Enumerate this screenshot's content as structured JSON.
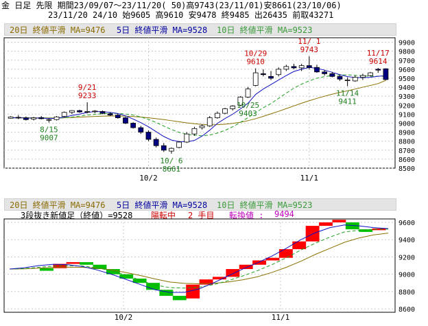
{
  "header": {
    "line1": "金 日足 先限 期間23/09/07～23/11/20( 50)高9743(23/11/01)安8661(23/10/06)",
    "line2": "23/11/20 24/10 始9605 高9610 安9478 終9485 出26435 前取43271"
  },
  "legend": {
    "ma20": "20日 終値平滑 MA=9476",
    "ma5": "5日 終値平滑 MA=9528",
    "ma10": "10日 終値平滑 MA=9523"
  },
  "lower_info": {
    "label": "3段抜き新値足（終値）=9528",
    "state": "陽転中",
    "step": "2 手目",
    "reversal_label": "転換値 :",
    "reversal_value": "9494"
  },
  "colors": {
    "up_candle": "#ffffff",
    "down_candle": "#000080",
    "ma5": "#1010c0",
    "ma10": "#20a020",
    "ma20": "#8a7000",
    "annotation_high": "#cc0000",
    "annotation_low": "#208020",
    "newprice_up": "#ff0000",
    "newprice_down": "#00c000"
  },
  "chart_data": [
    {
      "type": "candlestick",
      "title": "金 日足 先限",
      "y_ticks": [
        "9900",
        "9800",
        "9700",
        "9600",
        "9500",
        "9400",
        "9300",
        "9200",
        "9100",
        "9000",
        "8900",
        "8800",
        "8700",
        "8600",
        "8500"
      ],
      "ylim": [
        8500,
        9950
      ],
      "x_ticks": [
        "10/2",
        "11/1"
      ],
      "candles": [
        [
          9055,
          9078,
          9050,
          9070
        ],
        [
          9065,
          9090,
          9045,
          9060
        ],
        [
          9060,
          9075,
          9030,
          9040
        ],
        [
          9045,
          9070,
          9030,
          9060
        ],
        [
          9062,
          9080,
          9042,
          9050
        ],
        [
          9035,
          9050,
          9007,
          9040
        ],
        [
          9040,
          9080,
          9030,
          9070
        ],
        [
          9075,
          9130,
          9070,
          9120
        ],
        [
          9120,
          9145,
          9100,
          9140
        ],
        [
          9140,
          9150,
          9115,
          9125
        ],
        [
          9125,
          9233,
          9110,
          9130
        ],
        [
          9130,
          9145,
          9110,
          9135
        ],
        [
          9130,
          9140,
          9100,
          9110
        ],
        [
          9105,
          9120,
          9080,
          9090
        ],
        [
          9090,
          9105,
          9050,
          9060
        ],
        [
          9060,
          9070,
          8990,
          9000
        ],
        [
          9000,
          9010,
          8940,
          8950
        ],
        [
          8950,
          8970,
          8880,
          8900
        ],
        [
          8900,
          8920,
          8800,
          8820
        ],
        [
          8820,
          8840,
          8730,
          8750
        ],
        [
          8750,
          8780,
          8680,
          8700
        ],
        [
          8690,
          8730,
          8661,
          8720
        ],
        [
          8730,
          8800,
          8720,
          8790
        ],
        [
          8790,
          8900,
          8780,
          8880
        ],
        [
          8880,
          8960,
          8860,
          8940
        ],
        [
          8950,
          8990,
          8930,
          8970
        ],
        [
          8970,
          9080,
          8960,
          9060
        ],
        [
          9060,
          9130,
          9050,
          9110
        ],
        [
          9110,
          9170,
          9100,
          9160
        ],
        [
          9160,
          9200,
          9140,
          9190
        ],
        [
          9200,
          9300,
          9190,
          9290
        ],
        [
          9290,
          9403,
          9280,
          9380
        ],
        [
          9420,
          9610,
          9410,
          9560
        ],
        [
          9550,
          9600,
          9520,
          9540
        ],
        [
          9520,
          9580,
          9480,
          9500
        ],
        [
          9540,
          9620,
          9520,
          9600
        ],
        [
          9600,
          9650,
          9580,
          9630
        ],
        [
          9630,
          9660,
          9600,
          9615
        ],
        [
          9615,
          9660,
          9580,
          9640
        ],
        [
          9640,
          9743,
          9600,
          9620
        ],
        [
          9620,
          9650,
          9560,
          9570
        ],
        [
          9570,
          9590,
          9530,
          9550
        ],
        [
          9550,
          9570,
          9510,
          9520
        ],
        [
          9520,
          9540,
          9470,
          9490
        ],
        [
          9480,
          9510,
          9411,
          9480
        ],
        [
          9470,
          9530,
          9460,
          9510
        ],
        [
          9510,
          9550,
          9480,
          9530
        ],
        [
          9530,
          9570,
          9520,
          9560
        ],
        [
          9600,
          9614,
          9560,
          9590
        ],
        [
          9605,
          9610,
          9478,
          9485
        ]
      ],
      "ma5": [
        9060,
        9061,
        9058,
        9057,
        9056,
        9052,
        9054,
        9068,
        9086,
        9101,
        9119,
        9130,
        9128,
        9120,
        9108,
        9082,
        9046,
        9006,
        8960,
        8906,
        8852,
        8812,
        8796,
        8794,
        8808,
        8856,
        8922,
        8998,
        9052,
        9100,
        9158,
        9222,
        9320,
        9380,
        9430,
        9480,
        9530,
        9575,
        9600,
        9620,
        9610,
        9590,
        9566,
        9540,
        9518,
        9508,
        9506,
        9510,
        9522,
        9528
      ],
      "ma10": [
        9060,
        9060,
        9058,
        9057,
        9056,
        9055,
        9056,
        9060,
        9068,
        9080,
        9090,
        9098,
        9104,
        9108,
        9108,
        9102,
        9090,
        9070,
        9042,
        9008,
        8968,
        8930,
        8898,
        8878,
        8866,
        8860,
        8868,
        8890,
        8920,
        8960,
        9008,
        9062,
        9118,
        9172,
        9218,
        9276,
        9334,
        9390,
        9434,
        9470,
        9500,
        9518,
        9530,
        9536,
        9538,
        9532,
        9528,
        9522,
        9522,
        9523
      ],
      "ma20": [
        9060,
        9060,
        9059,
        9059,
        9059,
        9058,
        9058,
        9060,
        9063,
        9067,
        9071,
        9075,
        9078,
        9080,
        9080,
        9078,
        9074,
        9068,
        9060,
        9050,
        9040,
        9028,
        9016,
        9004,
        8994,
        8986,
        8982,
        8984,
        8988,
        8998,
        9010,
        9028,
        9050,
        9076,
        9104,
        9132,
        9162,
        9192,
        9222,
        9250,
        9276,
        9300,
        9322,
        9342,
        9360,
        9380,
        9400,
        9420,
        9440,
        9476
      ],
      "annotations": [
        {
          "text": "9/21",
          "value": "9233"
        },
        {
          "text": "8/15",
          "value": "9007"
        },
        {
          "text": "10/ 6",
          "value": "8661"
        },
        {
          "text": "10/29",
          "value": "9610"
        },
        {
          "text": "10/25",
          "value": "9403"
        },
        {
          "text": "11/ 1",
          "value": "9743"
        },
        {
          "text": "11/14",
          "value": "9411"
        },
        {
          "text": "11/17",
          "value": "9614"
        }
      ]
    },
    {
      "type": "newprice",
      "title": "3段抜き新値足（終値）",
      "y_ticks": [
        "9600",
        "9400",
        "9200",
        "9000",
        "8800",
        "8600"
      ],
      "ylim": [
        8560,
        9640
      ],
      "x_ticks": [
        "10/2",
        "11/1"
      ],
      "bricks": [
        {
          "c": "g",
          "lo": 9040,
          "hi": 9070
        },
        {
          "c": "r",
          "lo": 9070,
          "hi": 9120
        },
        {
          "c": "r",
          "lo": 9120,
          "hi": 9140
        },
        {
          "c": "g",
          "lo": 9110,
          "hi": 9140
        },
        {
          "c": "g",
          "lo": 9060,
          "hi": 9110
        },
        {
          "c": "g",
          "lo": 9000,
          "hi": 9060
        },
        {
          "c": "g",
          "lo": 8950,
          "hi": 9000
        },
        {
          "c": "g",
          "lo": 8900,
          "hi": 8950
        },
        {
          "c": "g",
          "lo": 8820,
          "hi": 8900
        },
        {
          "c": "g",
          "lo": 8750,
          "hi": 8820
        },
        {
          "c": "g",
          "lo": 8700,
          "hi": 8750
        },
        {
          "c": "r",
          "lo": 8720,
          "hi": 8880
        },
        {
          "c": "r",
          "lo": 8880,
          "hi": 8940
        },
        {
          "c": "r",
          "lo": 8940,
          "hi": 8970
        },
        {
          "c": "r",
          "lo": 8970,
          "hi": 9060
        },
        {
          "c": "r",
          "lo": 9060,
          "hi": 9110
        },
        {
          "c": "r",
          "lo": 9110,
          "hi": 9160
        },
        {
          "c": "r",
          "lo": 9160,
          "hi": 9190
        },
        {
          "c": "r",
          "lo": 9190,
          "hi": 9290
        },
        {
          "c": "r",
          "lo": 9290,
          "hi": 9380
        },
        {
          "c": "r",
          "lo": 9380,
          "hi": 9560
        },
        {
          "c": "r",
          "lo": 9560,
          "hi": 9600
        },
        {
          "c": "r",
          "lo": 9600,
          "hi": 9630
        },
        {
          "c": "g",
          "lo": 9520,
          "hi": 9600
        },
        {
          "c": "g",
          "lo": 9490,
          "hi": 9520
        },
        {
          "c": "r",
          "lo": 9510,
          "hi": 9530
        }
      ],
      "ma5": [
        9060,
        9075,
        9100,
        9115,
        9110,
        9090,
        9050,
        9000,
        8940,
        8880,
        8820,
        8790,
        8790,
        8830,
        8900,
        8980,
        9060,
        9130,
        9210,
        9300,
        9400,
        9480,
        9540,
        9570,
        9560,
        9540,
        9528
      ],
      "ma10": [
        9060,
        9065,
        9080,
        9095,
        9100,
        9095,
        9075,
        9040,
        8990,
        8930,
        8875,
        8845,
        8840,
        8850,
        8880,
        8925,
        8980,
        9040,
        9110,
        9190,
        9280,
        9360,
        9430,
        9490,
        9510,
        9520,
        9523
      ],
      "ma20": [
        9060,
        9062,
        9070,
        9078,
        9082,
        9080,
        9070,
        9050,
        9020,
        8985,
        8945,
        8910,
        8895,
        8890,
        8895,
        8910,
        8935,
        8970,
        9020,
        9080,
        9150,
        9230,
        9300,
        9370,
        9420,
        9455,
        9476
      ]
    }
  ]
}
